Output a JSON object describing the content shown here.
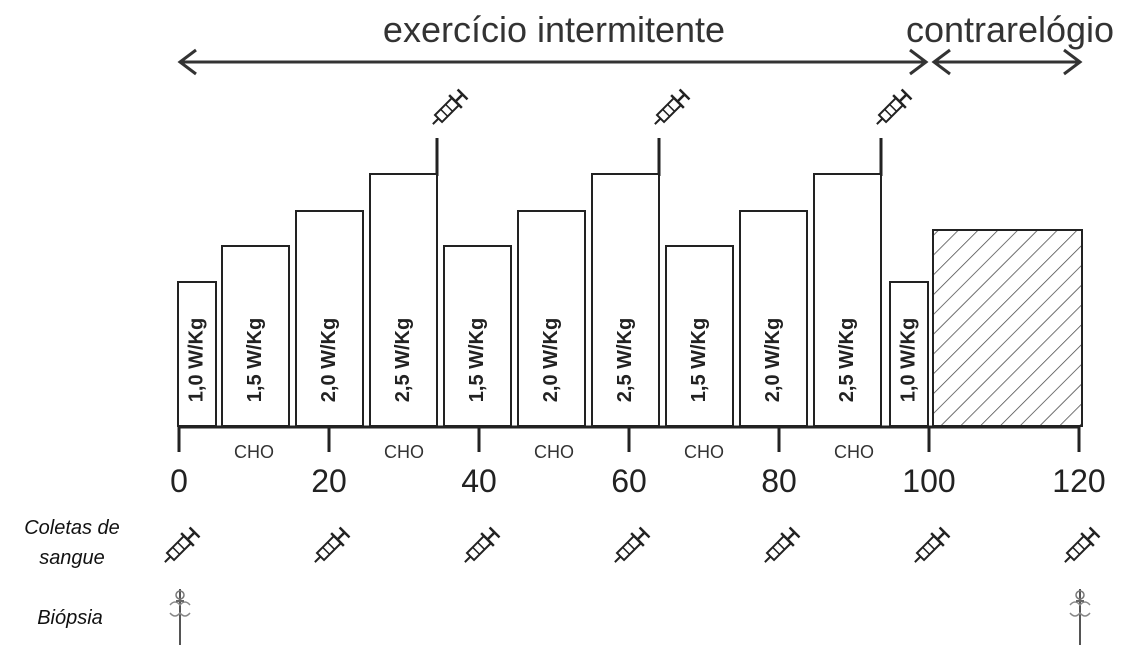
{
  "phases": {
    "intermittent": "exercício intermitente",
    "time_trial": "contrarelógio"
  },
  "bars": [
    {
      "label": "1,0 W/Kg",
      "intensity": 1.0
    },
    {
      "label": "1,5 W/Kg",
      "intensity": 1.5
    },
    {
      "label": "2,0 W/Kg",
      "intensity": 2.0
    },
    {
      "label": "2,5 W/Kg",
      "intensity": 2.5
    },
    {
      "label": "1,5 W/Kg",
      "intensity": 1.5
    },
    {
      "label": "2,0 W/Kg",
      "intensity": 2.0
    },
    {
      "label": "2,5 W/Kg",
      "intensity": 2.5
    },
    {
      "label": "1,5 W/Kg",
      "intensity": 1.5
    },
    {
      "label": "2,0 W/Kg",
      "intensity": 2.0
    },
    {
      "label": "2,5 W/Kg",
      "intensity": 2.5
    },
    {
      "label": "1,0 W/Kg",
      "intensity": 1.0
    }
  ],
  "timeline": {
    "ticks": [
      "0",
      "20",
      "40",
      "60",
      "80",
      "100",
      "120"
    ],
    "cho_label": "CHO",
    "cho_count": 5
  },
  "rows": {
    "blood_samples": [
      "Coletas de",
      "sangue"
    ],
    "biopsy": "Biópsia"
  },
  "icons": {
    "syringe": "syringe-icon",
    "biopsy_needle": "biopsy-needle-icon"
  },
  "colors": {
    "stroke": "#222222",
    "hatch": "#444444"
  }
}
